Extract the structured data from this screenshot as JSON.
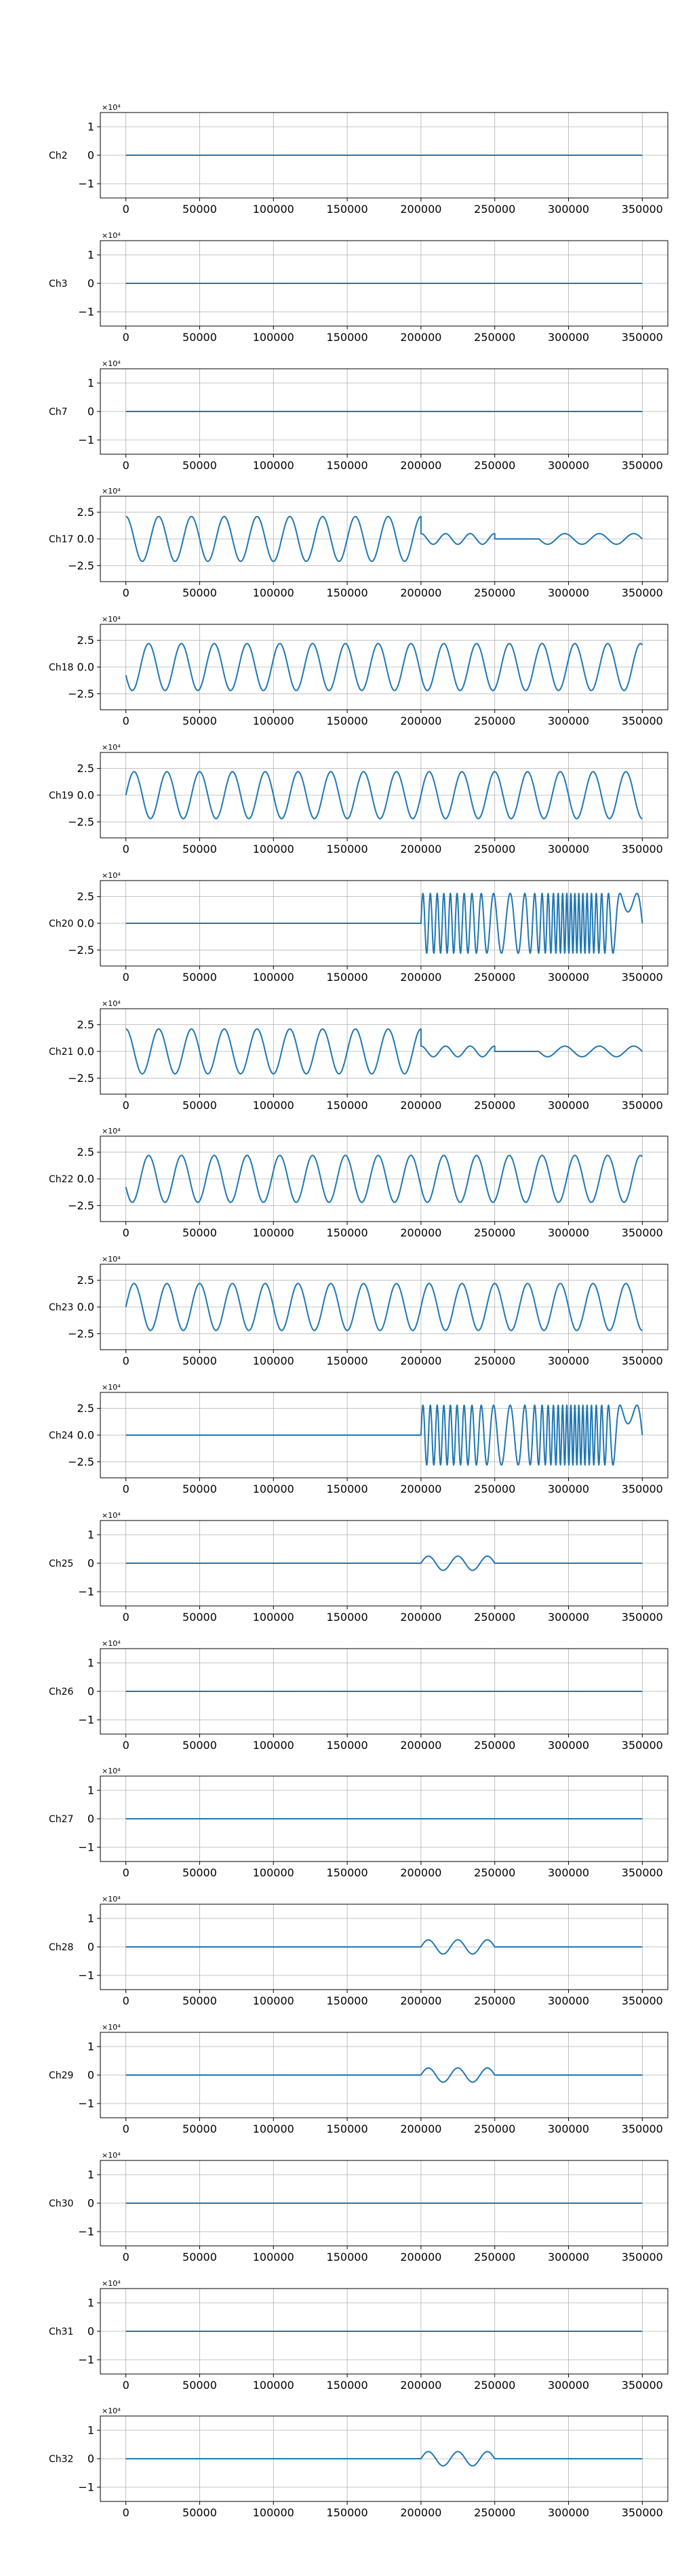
{
  "chart_data": {
    "type": "line",
    "color": "#1f77b4",
    "grid": true,
    "x_ticks": [
      "0",
      "50000",
      "100000",
      "150000",
      "200000",
      "250000",
      "300000",
      "350000"
    ],
    "x_range": [
      0,
      350000
    ],
    "panels": [
      {
        "channel": "Ch2",
        "offset_text": "×10⁴",
        "ylim": [
          -1.5,
          1.5
        ],
        "y_ticks": [
          "1",
          "0",
          "−1"
        ],
        "segments": [
          {
            "x": [
              0,
              350000
            ],
            "form": "flat",
            "level": 0
          }
        ]
      },
      {
        "channel": "Ch3",
        "offset_text": "×10⁴",
        "ylim": [
          -1.5,
          1.5
        ],
        "y_ticks": [
          "1",
          "0",
          "−1"
        ],
        "segments": [
          {
            "x": [
              0,
              350000
            ],
            "form": "flat",
            "level": 0
          }
        ]
      },
      {
        "channel": "Ch7",
        "offset_text": "×10⁴",
        "ylim": [
          -1.5,
          1.5
        ],
        "y_ticks": [
          "1",
          "0",
          "−1"
        ],
        "segments": [
          {
            "x": [
              0,
              350000
            ],
            "form": "flat",
            "level": 0
          }
        ]
      },
      {
        "channel": "Ch17",
        "offset_text": "×10⁴",
        "ylim": [
          -4,
          4
        ],
        "y_ticks": [
          "2.5",
          "0.0",
          "−2.5"
        ],
        "segments": [
          {
            "x": [
              0,
              200000
            ],
            "form": "sine",
            "amplitude": 2.1,
            "cycles": 9,
            "phase": 90
          },
          {
            "x": [
              200000,
              250000
            ],
            "form": "sine",
            "amplitude": 0.5,
            "cycles": 3,
            "phase": 90
          },
          {
            "x": [
              250000,
              280000
            ],
            "form": "flat",
            "level": 0
          },
          {
            "x": [
              280000,
              350000
            ],
            "form": "sine",
            "amplitude": 0.5,
            "cycles": 3,
            "phase": 180
          }
        ]
      },
      {
        "channel": "Ch18",
        "offset_text": "×10⁴",
        "ylim": [
          -4,
          4
        ],
        "y_ticks": [
          "2.5",
          "0.0",
          "−2.5"
        ],
        "segments": [
          {
            "x": [
              0,
              350000
            ],
            "form": "sine",
            "amplitude": 2.2,
            "cycles": 15.75,
            "phase": 200
          }
        ]
      },
      {
        "channel": "Ch19",
        "offset_text": "×10⁴",
        "ylim": [
          -4,
          4
        ],
        "y_ticks": [
          "2.5",
          "0.0",
          "−2.5"
        ],
        "segments": [
          {
            "x": [
              0,
              350000
            ],
            "form": "sine",
            "amplitude": 2.2,
            "cycles": 15.75,
            "phase": 0
          }
        ]
      },
      {
        "channel": "Ch20",
        "offset_text": "×10⁴",
        "ylim": [
          -4,
          4
        ],
        "y_ticks": [
          "2.5",
          "0.0",
          "−2.5"
        ],
        "segments": [
          {
            "x": [
              0,
              200000
            ],
            "form": "flat",
            "level": 0
          },
          {
            "x": [
              200000,
              350000
            ],
            "form": "dense",
            "amplitude": 2.8,
            "cycles": 28,
            "phase": 0
          }
        ]
      },
      {
        "channel": "Ch21",
        "offset_text": "×10⁴",
        "ylim": [
          -4,
          4
        ],
        "y_ticks": [
          "2.5",
          "0.0",
          "−2.5"
        ],
        "segments": [
          {
            "x": [
              0,
              200000
            ],
            "form": "sine",
            "amplitude": 2.1,
            "cycles": 9,
            "phase": 90
          },
          {
            "x": [
              200000,
              250000
            ],
            "form": "sine",
            "amplitude": 0.5,
            "cycles": 3,
            "phase": 90
          },
          {
            "x": [
              250000,
              280000
            ],
            "form": "flat",
            "level": 0
          },
          {
            "x": [
              280000,
              350000
            ],
            "form": "sine",
            "amplitude": 0.5,
            "cycles": 3,
            "phase": 180
          }
        ]
      },
      {
        "channel": "Ch22",
        "offset_text": "×10⁴",
        "ylim": [
          -4,
          4
        ],
        "y_ticks": [
          "2.5",
          "0.0",
          "−2.5"
        ],
        "segments": [
          {
            "x": [
              0,
              350000
            ],
            "form": "sine",
            "amplitude": 2.2,
            "cycles": 15.75,
            "phase": 200
          }
        ]
      },
      {
        "channel": "Ch23",
        "offset_text": "×10⁴",
        "ylim": [
          -4,
          4
        ],
        "y_ticks": [
          "2.5",
          "0.0",
          "−2.5"
        ],
        "segments": [
          {
            "x": [
              0,
              350000
            ],
            "form": "sine",
            "amplitude": 2.2,
            "cycles": 15.75,
            "phase": 0
          }
        ]
      },
      {
        "channel": "Ch24",
        "offset_text": "×10⁴",
        "ylim": [
          -4,
          4
        ],
        "y_ticks": [
          "2.5",
          "0.0",
          "−2.5"
        ],
        "segments": [
          {
            "x": [
              0,
              200000
            ],
            "form": "flat",
            "level": 0
          },
          {
            "x": [
              200000,
              350000
            ],
            "form": "dense",
            "amplitude": 2.8,
            "cycles": 28,
            "phase": 0
          }
        ]
      },
      {
        "channel": "Ch25",
        "offset_text": "×10⁴",
        "ylim": [
          -1.5,
          1.5
        ],
        "y_ticks": [
          "1",
          "0",
          "−1"
        ],
        "segments": [
          {
            "x": [
              0,
              200000
            ],
            "form": "flat",
            "level": 0
          },
          {
            "x": [
              200000,
              250000
            ],
            "form": "sine",
            "amplitude": 0.25,
            "cycles": 2.5,
            "phase": 0
          },
          {
            "x": [
              250000,
              350000
            ],
            "form": "flat",
            "level": 0
          }
        ]
      },
      {
        "channel": "Ch26",
        "offset_text": "×10⁴",
        "ylim": [
          -1.5,
          1.5
        ],
        "y_ticks": [
          "1",
          "0",
          "−1"
        ],
        "segments": [
          {
            "x": [
              0,
              350000
            ],
            "form": "flat",
            "level": 0
          }
        ]
      },
      {
        "channel": "Ch27",
        "offset_text": "×10⁴",
        "ylim": [
          -1.5,
          1.5
        ],
        "y_ticks": [
          "1",
          "0",
          "−1"
        ],
        "segments": [
          {
            "x": [
              0,
              350000
            ],
            "form": "flat",
            "level": 0
          }
        ]
      },
      {
        "channel": "Ch28",
        "offset_text": "×10⁴",
        "ylim": [
          -1.5,
          1.5
        ],
        "y_ticks": [
          "1",
          "0",
          "−1"
        ],
        "segments": [
          {
            "x": [
              0,
              200000
            ],
            "form": "flat",
            "level": 0
          },
          {
            "x": [
              200000,
              250000
            ],
            "form": "sine",
            "amplitude": 0.25,
            "cycles": 2.5,
            "phase": 0
          },
          {
            "x": [
              250000,
              350000
            ],
            "form": "flat",
            "level": 0
          }
        ]
      },
      {
        "channel": "Ch29",
        "offset_text": "×10⁴",
        "ylim": [
          -1.5,
          1.5
        ],
        "y_ticks": [
          "1",
          "0",
          "−1"
        ],
        "segments": [
          {
            "x": [
              0,
              200000
            ],
            "form": "flat",
            "level": 0
          },
          {
            "x": [
              200000,
              250000
            ],
            "form": "sine",
            "amplitude": 0.25,
            "cycles": 2.5,
            "phase": 0
          },
          {
            "x": [
              250000,
              350000
            ],
            "form": "flat",
            "level": 0
          }
        ]
      },
      {
        "channel": "Ch30",
        "offset_text": "×10⁴",
        "ylim": [
          -1.5,
          1.5
        ],
        "y_ticks": [
          "1",
          "0",
          "−1"
        ],
        "segments": [
          {
            "x": [
              0,
              350000
            ],
            "form": "flat",
            "level": 0
          }
        ]
      },
      {
        "channel": "Ch31",
        "offset_text": "×10⁴",
        "ylim": [
          -1.5,
          1.5
        ],
        "y_ticks": [
          "1",
          "0",
          "−1"
        ],
        "segments": [
          {
            "x": [
              0,
              350000
            ],
            "form": "flat",
            "level": 0
          }
        ]
      },
      {
        "channel": "Ch32",
        "offset_text": "×10⁴",
        "ylim": [
          -1.5,
          1.5
        ],
        "y_ticks": [
          "1",
          "0",
          "−1"
        ],
        "segments": [
          {
            "x": [
              0,
              200000
            ],
            "form": "flat",
            "level": 0
          },
          {
            "x": [
              200000,
              250000
            ],
            "form": "sine",
            "amplitude": 0.25,
            "cycles": 2.5,
            "phase": 0
          },
          {
            "x": [
              250000,
              350000
            ],
            "form": "flat",
            "level": 0
          }
        ]
      }
    ]
  }
}
